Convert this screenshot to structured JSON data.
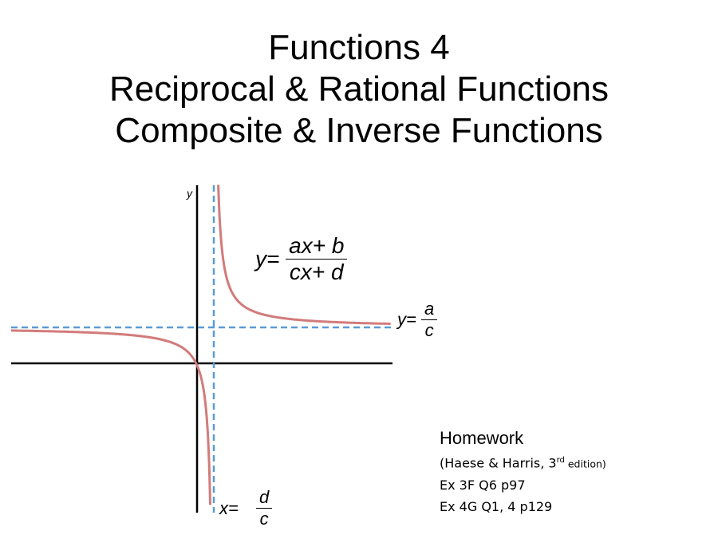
{
  "title": {
    "line1": "Functions 4",
    "line2": "Reciprocal & Rational Functions",
    "line3": "Composite & Inverse Functions"
  },
  "graph": {
    "y_axis_label": "y",
    "equation": {
      "lhs": "y=",
      "numerator": "ax+ b",
      "denominator": "cx+ d"
    },
    "horizontal_asymptote": {
      "lhs": "y=",
      "numerator": "a",
      "denominator": "c"
    },
    "vertical_asymptote": {
      "lhs": "x=",
      "numerator": "d",
      "denominator": "c"
    },
    "colors": {
      "curve": "#d27b7b",
      "asymptote": "#5b9bd5",
      "axis": "#000000"
    }
  },
  "homework": {
    "heading": "Homework",
    "source_prefix": "(Haese & Harris, 3",
    "source_sup": "rd",
    "source_suffix": " edition)",
    "line1": "Ex 3F Q6 p97",
    "line2": "Ex 4G Q1, 4 p129"
  }
}
